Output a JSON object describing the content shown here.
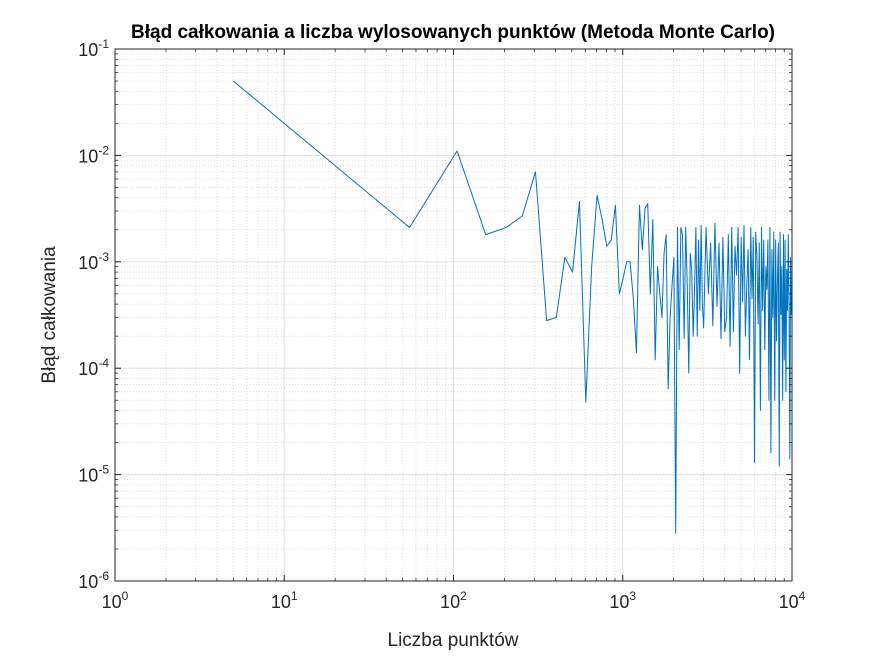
{
  "chart_data": {
    "type": "line",
    "title": "Błąd całkowania a liczba wylosowanych punktów (Metoda Monte Carlo)",
    "xlabel": "Liczba punktów",
    "ylabel": "Błąd całkowania",
    "xscale": "log",
    "yscale": "log",
    "xlim": [
      1,
      10000
    ],
    "ylim": [
      1e-06,
      0.1
    ],
    "grid": true,
    "minor_grid": true,
    "x_ticks": [
      {
        "base": "10",
        "exp": "0"
      },
      {
        "base": "10",
        "exp": "1"
      },
      {
        "base": "10",
        "exp": "2"
      },
      {
        "base": "10",
        "exp": "3"
      },
      {
        "base": "10",
        "exp": "4"
      }
    ],
    "y_ticks": [
      {
        "base": "10",
        "exp": "-6"
      },
      {
        "base": "10",
        "exp": "-5"
      },
      {
        "base": "10",
        "exp": "-4"
      },
      {
        "base": "10",
        "exp": "-3"
      },
      {
        "base": "10",
        "exp": "-2"
      },
      {
        "base": "10",
        "exp": "-1"
      }
    ],
    "line_color": "#0072BD",
    "series": [
      {
        "x": [
          5,
          55,
          105,
          155,
          205,
          255,
          305,
          355,
          405,
          455,
          505,
          555,
          605,
          655,
          705,
          755,
          805,
          855,
          905,
          955,
          1005,
          1055,
          1105,
          1155,
          1205,
          1255,
          1305,
          1355,
          1405,
          1455,
          1505,
          1555,
          1605,
          1655,
          1705,
          1755,
          1805,
          1855,
          1905,
          1955,
          2005,
          2055,
          2105,
          2155,
          2205,
          2255,
          2305,
          2355,
          2405,
          2455,
          2505,
          2555,
          2605,
          2655,
          2705,
          2755,
          2805,
          2855,
          2905,
          2955,
          3005,
          3105,
          3205,
          3305,
          3405,
          3505,
          3605,
          3705,
          3805,
          3905,
          4005,
          4105,
          4205,
          4305,
          4405,
          4505,
          4605,
          4705,
          4805,
          4905,
          5005,
          5105,
          5205,
          5305,
          5405,
          5505,
          5605,
          5705,
          5805,
          5905,
          6005,
          6105,
          6205,
          6305,
          6405,
          6505,
          6605,
          6705,
          6805,
          6905,
          7005,
          7105,
          7205,
          7305,
          7405,
          7505,
          7605,
          7705,
          7805,
          7905,
          8005,
          8105,
          8205,
          8305,
          8405,
          8505,
          8605,
          8705,
          8805,
          8905,
          9005,
          9105,
          9205,
          9305,
          9405,
          9505,
          9605,
          9705,
          9805,
          9905,
          10000
        ],
        "y": [
          0.05,
          0.0021,
          0.011,
          0.0018,
          0.0021,
          0.0027,
          0.007,
          0.00028,
          0.0003,
          0.0011,
          0.0008,
          0.0037,
          4.8e-05,
          0.0009,
          0.0042,
          0.0025,
          0.0014,
          0.0016,
          0.0034,
          0.0005,
          0.0007,
          0.001,
          0.001,
          0.00045,
          0.00014,
          0.0034,
          0.0013,
          0.0032,
          0.0035,
          0.0005,
          0.0025,
          0.00012,
          0.0009,
          0.0005,
          0.0003,
          0.0012,
          0.0018,
          6.4e-05,
          0.0003,
          0.0006,
          0.0011,
          2.8e-06,
          0.0021,
          0.00015,
          0.0021,
          0.0018,
          0.00019,
          0.0021,
          0.0006,
          9e-05,
          0.0012,
          0.00085,
          0.0002,
          0.00055,
          0.0021,
          0.0002,
          0.0016,
          0.00035,
          0.0022,
          0.0004,
          0.00024,
          0.0021,
          0.0005,
          0.0015,
          0.00025,
          0.0023,
          0.00038,
          0.0015,
          0.00019,
          0.0017,
          0.00022,
          0.0003,
          0.0018,
          0.00016,
          0.0021,
          0.00022,
          0.0014,
          0.00075,
          0.0021,
          9e-05,
          0.0017,
          0.00042,
          0.0022,
          0.0002,
          0.0006,
          0.0013,
          0.00012,
          0.0021,
          0.00045,
          0.0017,
          1.3e-05,
          0.0019,
          0.0011,
          0.00026,
          0.0015,
          4e-05,
          0.0021,
          0.00035,
          0.0016,
          0.00015,
          0.0009,
          0.00055,
          0.0016,
          5e-05,
          0.0021,
          1.6e-05,
          0.0013,
          0.0003,
          0.0019,
          5e-05,
          0.0016,
          0.00018,
          0.0007,
          0.0015,
          1.2e-05,
          0.0019,
          0.00032,
          0.0009,
          5e-05,
          0.0018,
          0.00012,
          0.0016,
          6e-05,
          0.00085,
          0.00035,
          0.0018,
          0.0004,
          1.4e-05,
          0.0011,
          0.00032,
          0.00045
        ]
      }
    ]
  }
}
